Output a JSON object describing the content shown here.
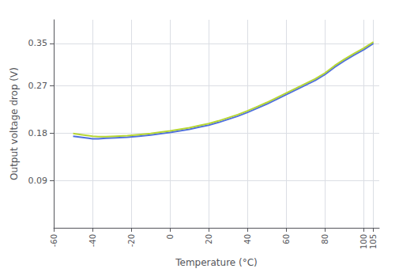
{
  "chart_data": {
    "type": "line",
    "xlabel": "Temperature (°C)",
    "ylabel": "Output voltage drop (V)",
    "xlim": [
      -60,
      108
    ],
    "ylim": [
      0.0,
      0.395
    ],
    "xticks": [
      -60,
      -40,
      -20,
      0,
      20,
      40,
      60,
      80,
      100,
      105
    ],
    "yticks": [
      0.09,
      0.18,
      0.27,
      0.35
    ],
    "grid": true,
    "x": [
      -50,
      -46,
      -42,
      -40,
      -37,
      -33,
      -28,
      -22,
      -16,
      -10,
      -4,
      0,
      5,
      10,
      15,
      20,
      25,
      30,
      35,
      40,
      45,
      50,
      55,
      60,
      65,
      70,
      75,
      80,
      85,
      90,
      95,
      100,
      105
    ],
    "series": [
      {
        "values": [
          0.174,
          0.172,
          0.17,
          0.169,
          0.169,
          0.17,
          0.171,
          0.172,
          0.174,
          0.176,
          0.179,
          0.181,
          0.184,
          0.187,
          0.191,
          0.195,
          0.2,
          0.206,
          0.212,
          0.219,
          0.227,
          0.235,
          0.244,
          0.253,
          0.262,
          0.271,
          0.28,
          0.291,
          0.305,
          0.317,
          0.328,
          0.338,
          0.35
        ]
      },
      {
        "values": [
          0.179,
          0.177,
          0.175,
          0.174,
          0.173,
          0.173,
          0.174,
          0.175,
          0.177,
          0.179,
          0.182,
          0.184,
          0.187,
          0.19,
          0.194,
          0.198,
          0.203,
          0.209,
          0.215,
          0.222,
          0.23,
          0.238,
          0.247,
          0.256,
          0.265,
          0.274,
          0.283,
          0.294,
          0.308,
          0.32,
          0.331,
          0.341,
          0.353
        ]
      }
    ]
  }
}
